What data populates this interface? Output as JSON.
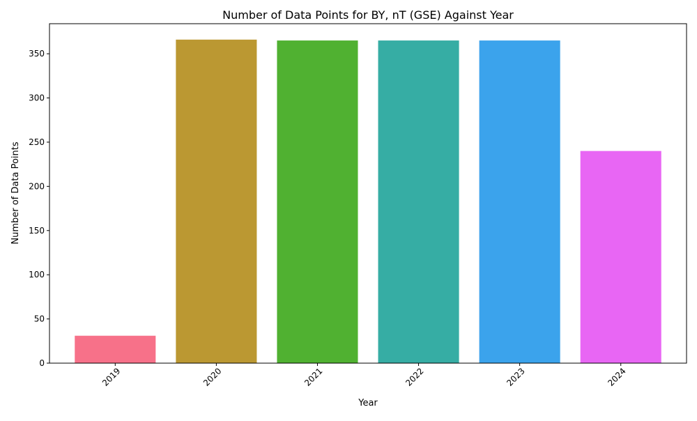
{
  "chart_data": {
    "type": "bar",
    "title": "Number of Data Points for BY, nT (GSE) Against Year",
    "xlabel": "Year",
    "ylabel": "Number of Data Points",
    "categories": [
      "2019",
      "2020",
      "2021",
      "2022",
      "2023",
      "2024"
    ],
    "values": [
      31,
      366,
      365,
      365,
      365,
      240
    ],
    "colors": [
      "#f77189",
      "#bb9832",
      "#50b131",
      "#36ada4",
      "#3ba3ec",
      "#e866f4"
    ],
    "ylim": [
      0,
      384
    ],
    "yticks": [
      0,
      50,
      100,
      150,
      200,
      250,
      300,
      350
    ],
    "grid": false,
    "legend": "none"
  }
}
